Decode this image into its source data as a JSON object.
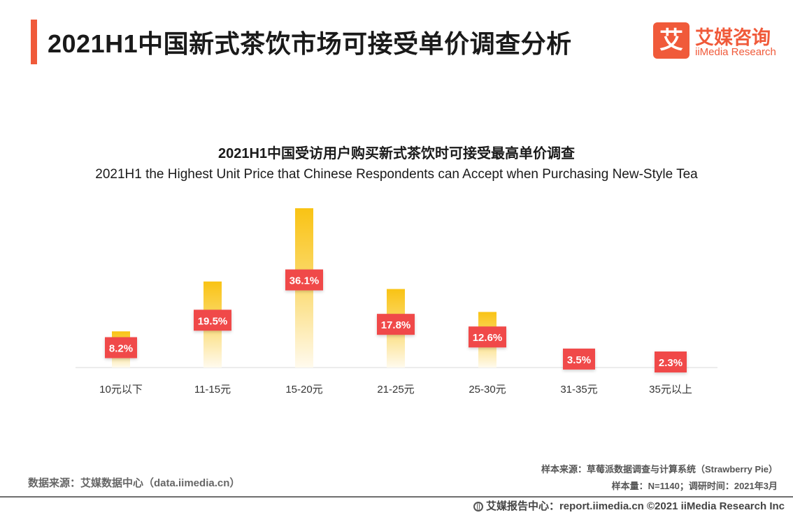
{
  "header": {
    "title": "2021H1中国新式茶饮市场可接受单价调查分析"
  },
  "logo": {
    "icon_glyph": "艾",
    "name_cn": "艾媒咨询",
    "name_en": "iiMedia Research"
  },
  "colors": {
    "accent": "#f05a3a",
    "bar_top": "#f9c314",
    "label_bg": "#f04a4a"
  },
  "chart_data": {
    "type": "bar",
    "title": "2021H1中国受访用户购买新式茶饮时可接受最高单价调查",
    "subtitle": "2021H1 the Highest Unit Price that Chinese Respondents can Accept when Purchasing New-Style Tea",
    "categories": [
      "10元以下",
      "11-15元",
      "15-20元",
      "21-25元",
      "25-30元",
      "31-35元",
      "35元以上"
    ],
    "values": [
      8.2,
      19.5,
      36.1,
      17.8,
      12.6,
      3.5,
      2.3
    ],
    "data_labels": [
      "8.2%",
      "19.5%",
      "36.1%",
      "17.8%",
      "12.6%",
      "3.5%",
      "2.3%"
    ],
    "unit": "%",
    "ylim": [
      0,
      36.1
    ],
    "grid": false,
    "legend": "none"
  },
  "source": {
    "left": "数据来源：艾媒数据中心（data.iimedia.cn）",
    "sample_source": "样本来源：草莓派数据调查与计算系统（Strawberry Pie）",
    "sample_info": "样本量：N=1140；调研时间：2021年3月"
  },
  "footer": {
    "text": "艾媒报告中心：report.iimedia.cn  ©2021  iiMedia Research  Inc"
  }
}
